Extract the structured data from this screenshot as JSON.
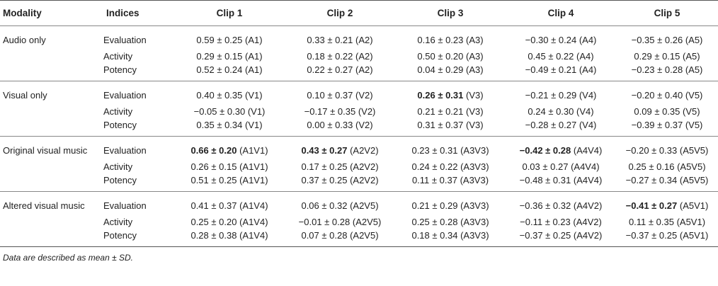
{
  "table": {
    "headers": [
      "Modality",
      "Indices",
      "Clip 1",
      "Clip 2",
      "Clip 3",
      "Clip 4",
      "Clip 5"
    ],
    "groups": [
      {
        "modality": "Audio only",
        "rows": [
          {
            "index": "Evaluation",
            "cells": [
              {
                "value": "0.59 ± 0.25",
                "code": "(A1)",
                "bold": false
              },
              {
                "value": "0.33 ± 0.21",
                "code": "(A2)",
                "bold": false
              },
              {
                "value": "0.16 ± 0.23",
                "code": "(A3)",
                "bold": false
              },
              {
                "value": "−0.30 ± 0.24",
                "code": "(A4)",
                "bold": false
              },
              {
                "value": "−0.35 ± 0.26",
                "code": "(A5)",
                "bold": false
              }
            ]
          },
          {
            "index": "Activity",
            "cells": [
              {
                "value": "0.29 ± 0.15",
                "code": "(A1)",
                "bold": false
              },
              {
                "value": "0.18 ± 0.22",
                "code": "(A2)",
                "bold": false
              },
              {
                "value": "0.50 ± 0.20",
                "code": "(A3)",
                "bold": false
              },
              {
                "value": "0.45 ± 0.22",
                "code": "(A4)",
                "bold": false
              },
              {
                "value": "0.29 ± 0.15",
                "code": "(A5)",
                "bold": false
              }
            ]
          },
          {
            "index": "Potency",
            "cells": [
              {
                "value": "0.52 ± 0.24",
                "code": "(A1)",
                "bold": false
              },
              {
                "value": "0.22 ± 0.27",
                "code": "(A2)",
                "bold": false
              },
              {
                "value": "0.04 ± 0.29",
                "code": "(A3)",
                "bold": false
              },
              {
                "value": "−0.49 ± 0.21",
                "code": "(A4)",
                "bold": false
              },
              {
                "value": "−0.23 ± 0.28",
                "code": "(A5)",
                "bold": false
              }
            ]
          }
        ]
      },
      {
        "modality": "Visual only",
        "rows": [
          {
            "index": "Evaluation",
            "cells": [
              {
                "value": "0.40 ± 0.35",
                "code": "(V1)",
                "bold": false
              },
              {
                "value": "0.10 ± 0.37",
                "code": "(V2)",
                "bold": false
              },
              {
                "value": "0.26 ± 0.31",
                "code": "(V3)",
                "bold": true
              },
              {
                "value": "−0.21 ± 0.29",
                "code": "(V4)",
                "bold": false
              },
              {
                "value": "−0.20 ± 0.40",
                "code": "(V5)",
                "bold": false
              }
            ]
          },
          {
            "index": "Activity",
            "cells": [
              {
                "value": "−0.05 ± 0.30",
                "code": "(V1)",
                "bold": false
              },
              {
                "value": "−0.17 ± 0.35",
                "code": "(V2)",
                "bold": false
              },
              {
                "value": "0.21 ± 0.21",
                "code": "(V3)",
                "bold": false
              },
              {
                "value": "0.24 ± 0.30",
                "code": "(V4)",
                "bold": false
              },
              {
                "value": "0.09 ± 0.35",
                "code": "(V5)",
                "bold": false
              }
            ]
          },
          {
            "index": "Potency",
            "cells": [
              {
                "value": "0.35 ± 0.34",
                "code": "(V1)",
                "bold": false
              },
              {
                "value": "0.00 ± 0.33",
                "code": "(V2)",
                "bold": false
              },
              {
                "value": "0.31 ± 0.37",
                "code": "(V3)",
                "bold": false
              },
              {
                "value": "−0.28 ± 0.27",
                "code": "(V4)",
                "bold": false
              },
              {
                "value": "−0.39 ± 0.37",
                "code": "(V5)",
                "bold": false
              }
            ]
          }
        ]
      },
      {
        "modality": "Original visual music",
        "rows": [
          {
            "index": "Evaluation",
            "cells": [
              {
                "value": "0.66 ± 0.20",
                "code": "(A1V1)",
                "bold": true
              },
              {
                "value": "0.43 ± 0.27",
                "code": "(A2V2)",
                "bold": true
              },
              {
                "value": "0.23 ± 0.31",
                "code": "(A3V3)",
                "bold": false
              },
              {
                "value": "−0.42 ± 0.28",
                "code": "(A4V4)",
                "bold": true
              },
              {
                "value": "−0.20 ± 0.33",
                "code": "(A5V5)",
                "bold": false
              }
            ]
          },
          {
            "index": "Activity",
            "cells": [
              {
                "value": "0.26 ± 0.15",
                "code": "(A1V1)",
                "bold": false
              },
              {
                "value": "0.17 ± 0.25",
                "code": "(A2V2)",
                "bold": false
              },
              {
                "value": "0.24 ± 0.22",
                "code": "(A3V3)",
                "bold": false
              },
              {
                "value": "0.03 ± 0.27",
                "code": "(A4V4)",
                "bold": false
              },
              {
                "value": "0.25 ± 0.16",
                "code": "(A5V5)",
                "bold": false
              }
            ]
          },
          {
            "index": "Potency",
            "cells": [
              {
                "value": "0.51 ± 0.25",
                "code": "(A1V1)",
                "bold": false
              },
              {
                "value": "0.37 ± 0.25",
                "code": "(A2V2)",
                "bold": false
              },
              {
                "value": "0.11 ± 0.37",
                "code": "(A3V3)",
                "bold": false
              },
              {
                "value": "−0.48 ± 0.31",
                "code": "(A4V4)",
                "bold": false
              },
              {
                "value": "−0.27 ± 0.34",
                "code": "(A5V5)",
                "bold": false
              }
            ]
          }
        ]
      },
      {
        "modality": "Altered visual music",
        "rows": [
          {
            "index": "Evaluation",
            "cells": [
              {
                "value": "0.41 ± 0.37",
                "code": "(A1V4)",
                "bold": false
              },
              {
                "value": "0.06 ± 0.32",
                "code": "(A2V5)",
                "bold": false
              },
              {
                "value": "0.21 ± 0.29",
                "code": "(A3V3)",
                "bold": false
              },
              {
                "value": "−0.36 ± 0.32",
                "code": "(A4V2)",
                "bold": false
              },
              {
                "value": "−0.41 ± 0.27",
                "code": "(A5V1)",
                "bold": true
              }
            ]
          },
          {
            "index": "Activity",
            "cells": [
              {
                "value": "0.25 ± 0.20",
                "code": "(A1V4)",
                "bold": false
              },
              {
                "value": "−0.01 ± 0.28",
                "code": "(A2V5)",
                "bold": false
              },
              {
                "value": "0.25 ± 0.28",
                "code": "(A3V3)",
                "bold": false
              },
              {
                "value": "−0.11 ± 0.23",
                "code": "(A4V2)",
                "bold": false
              },
              {
                "value": "0.11 ± 0.35",
                "code": "(A5V1)",
                "bold": false
              }
            ]
          },
          {
            "index": "Potency",
            "cells": [
              {
                "value": "0.28 ± 0.38",
                "code": "(A1V4)",
                "bold": false
              },
              {
                "value": "0.07 ± 0.28",
                "code": "(A2V5)",
                "bold": false
              },
              {
                "value": "0.18 ± 0.34",
                "code": "(A3V3)",
                "bold": false
              },
              {
                "value": "−0.37 ± 0.25",
                "code": "(A4V2)",
                "bold": false
              },
              {
                "value": "−0.37 ± 0.25",
                "code": "(A5V1)",
                "bold": false
              }
            ]
          }
        ]
      }
    ]
  },
  "footnote": "Data are described as mean ± SD."
}
